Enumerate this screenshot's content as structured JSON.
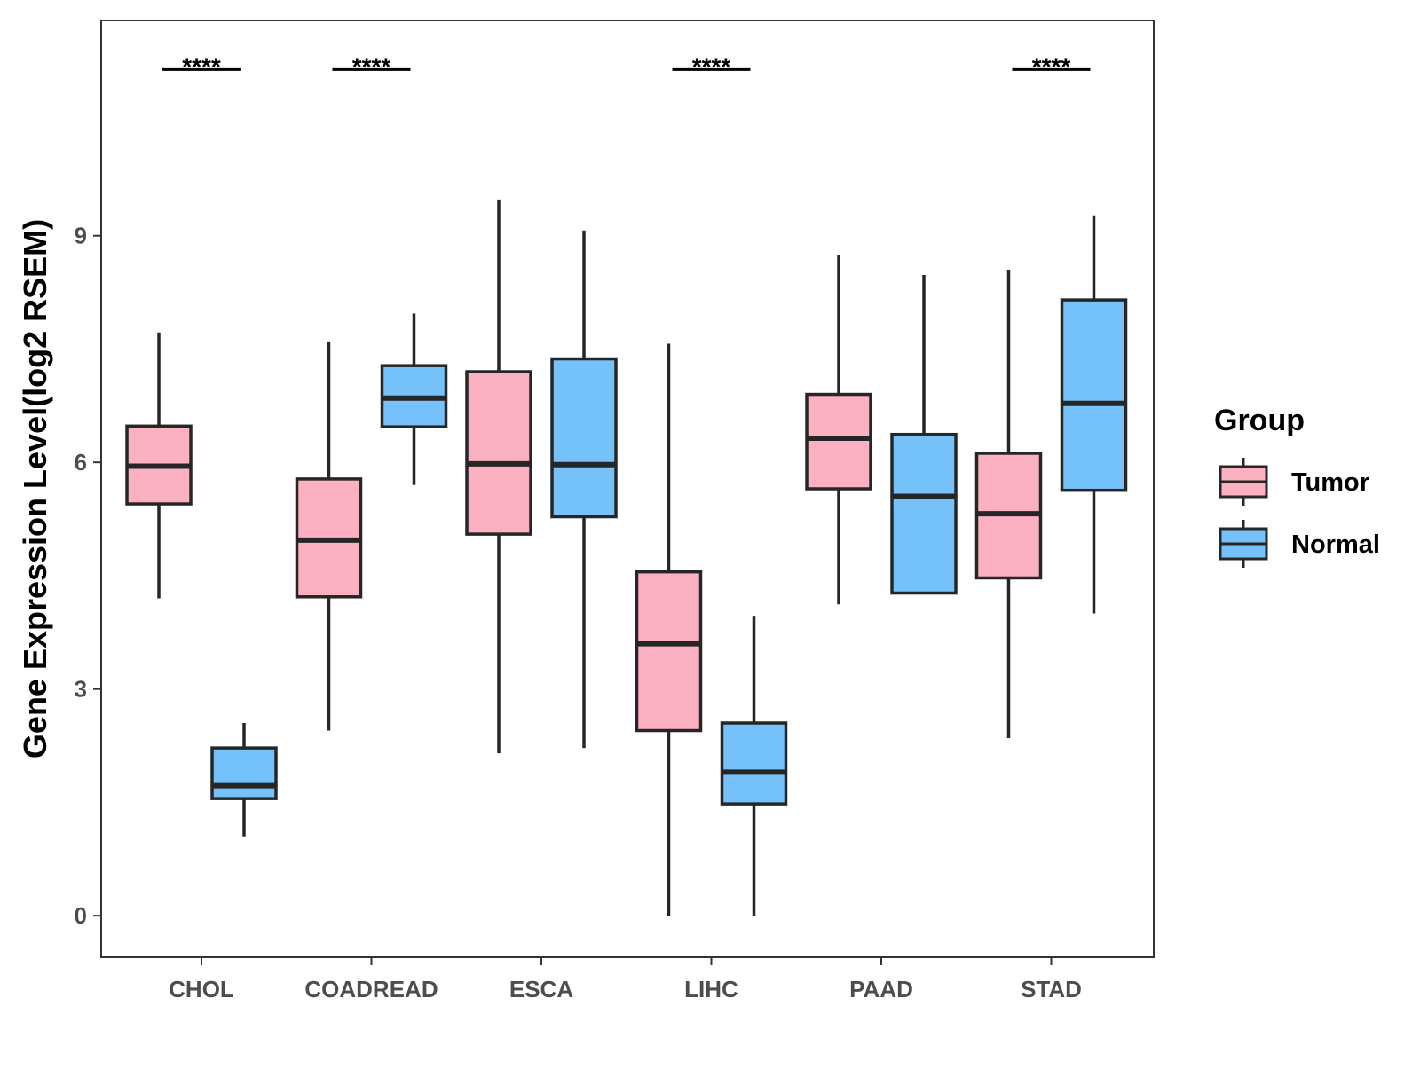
{
  "chart_data": {
    "type": "boxplot",
    "title": "",
    "xlabel": "",
    "ylabel": "Gene Expression Level(log2 RSEM)",
    "ylim": [
      -0.55,
      11.85
    ],
    "yticks": [
      0,
      3,
      6,
      9
    ],
    "grid": false,
    "categories": [
      "CHOL",
      "COADREAD",
      "ESCA",
      "LIHC",
      "PAAD",
      "STAD"
    ],
    "legend": {
      "title": "Group",
      "position": "right",
      "entries": [
        "Tumor",
        "Normal"
      ]
    },
    "series": [
      {
        "name": "Tumor",
        "color": "#FBB1C2",
        "boxes": [
          {
            "category": "CHOL",
            "min": 4.2,
            "q1": 5.45,
            "median": 5.95,
            "q3": 6.48,
            "max": 7.72
          },
          {
            "category": "COADREAD",
            "min": 2.45,
            "q1": 4.22,
            "median": 4.97,
            "q3": 5.78,
            "max": 7.6
          },
          {
            "category": "ESCA",
            "min": 2.15,
            "q1": 5.05,
            "median": 5.98,
            "q3": 7.2,
            "max": 9.48
          },
          {
            "category": "LIHC",
            "min": 0.0,
            "q1": 2.45,
            "median": 3.6,
            "q3": 4.55,
            "max": 7.57
          },
          {
            "category": "PAAD",
            "min": 4.12,
            "q1": 5.65,
            "median": 6.32,
            "q3": 6.9,
            "max": 8.75
          },
          {
            "category": "STAD",
            "min": 2.35,
            "q1": 4.47,
            "median": 5.32,
            "q3": 6.12,
            "max": 8.55
          }
        ]
      },
      {
        "name": "Normal",
        "color": "#75C1F9",
        "boxes": [
          {
            "category": "CHOL",
            "min": 1.05,
            "q1": 1.55,
            "median": 1.72,
            "q3": 2.22,
            "max": 2.55
          },
          {
            "category": "COADREAD",
            "min": 5.7,
            "q1": 6.47,
            "median": 6.85,
            "q3": 7.28,
            "max": 7.97
          },
          {
            "category": "ESCA",
            "min": 2.22,
            "q1": 5.28,
            "median": 5.97,
            "q3": 7.37,
            "max": 9.07
          },
          {
            "category": "LIHC",
            "min": 0.0,
            "q1": 1.48,
            "median": 1.9,
            "q3": 2.55,
            "max": 3.97
          },
          {
            "category": "PAAD",
            "min": 4.27,
            "q1": 4.27,
            "median": 5.55,
            "q3": 6.37,
            "max": 8.48
          },
          {
            "category": "STAD",
            "min": 4.0,
            "q1": 5.63,
            "median": 6.78,
            "q3": 8.15,
            "max": 9.27
          }
        ]
      }
    ],
    "significance": [
      {
        "category": "CHOL",
        "label": "****",
        "y": 11.2
      },
      {
        "category": "COADREAD",
        "label": "****",
        "y": 11.2
      },
      {
        "category": "LIHC",
        "label": "****",
        "y": 11.2
      },
      {
        "category": "STAD",
        "label": "****",
        "y": 11.2
      }
    ]
  }
}
